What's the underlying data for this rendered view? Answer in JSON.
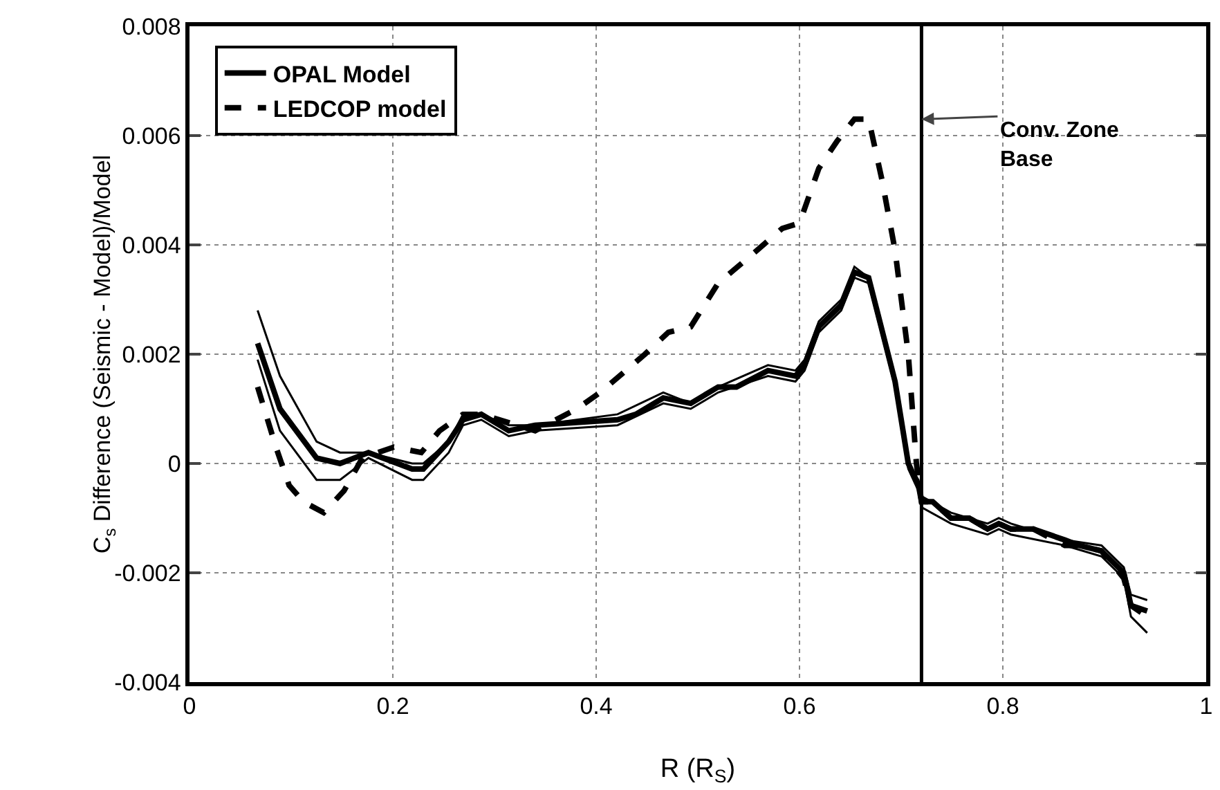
{
  "chart_data": {
    "type": "line",
    "xlabel": "R (R$_{S}$)",
    "ylabel": "C$_{s}$ Difference (Seismic - Model)/Model",
    "xlim": [
      0,
      1
    ],
    "xticks": [
      0,
      0.2,
      0.4,
      0.6,
      0.8,
      1
    ],
    "ylim": [
      -0.004,
      0.008
    ],
    "yticks": [
      -0.004,
      -0.002,
      0,
      0.002,
      0.004,
      0.006,
      0.008
    ],
    "grid": true,
    "legend": "top left",
    "marker": "none",
    "series": [
      {
        "name": "OPAL Model",
        "color": "#000000",
        "line_style": "solid",
        "x": [
          0.067,
          0.089,
          0.125,
          0.148,
          0.176,
          0.219,
          0.23,
          0.255,
          0.269,
          0.287,
          0.314,
          0.34,
          0.421,
          0.439,
          0.466,
          0.493,
          0.52,
          0.538,
          0.569,
          0.596,
          0.605,
          0.619,
          0.641,
          0.654,
          0.668,
          0.694,
          0.707,
          0.717,
          0.72,
          0.731,
          0.749,
          0.767,
          0.785,
          0.796,
          0.808,
          0.83,
          0.861,
          0.875,
          0.897,
          0.919,
          0.926,
          0.942
        ],
        "values": [
          0.0022,
          0.001,
          0.0001,
          0.0,
          0.0002,
          -0.0001,
          -0.0001,
          0.0004,
          0.0008,
          0.0009,
          0.0006,
          0.0007,
          0.0008,
          0.0009,
          0.0012,
          0.0011,
          0.0014,
          0.0014,
          0.0017,
          0.0016,
          0.0018,
          0.0025,
          0.0029,
          0.0035,
          0.0034,
          0.0015,
          0.0,
          -0.0004,
          -0.0007,
          -0.0007,
          -0.001,
          -0.001,
          -0.0012,
          -0.0011,
          -0.0012,
          -0.0012,
          -0.0014,
          -0.0015,
          -0.0016,
          -0.002,
          -0.0026,
          -0.0027
        ]
      },
      {
        "color": "#000000",
        "line_style": "solid",
        "x": [
          0.067,
          0.089,
          0.125,
          0.148,
          0.176,
          0.219,
          0.23,
          0.255,
          0.269,
          0.287,
          0.314,
          0.34,
          0.421,
          0.466,
          0.493,
          0.52,
          0.569,
          0.596,
          0.605,
          0.619,
          0.641,
          0.654,
          0.668,
          0.694,
          0.707,
          0.717,
          0.72,
          0.749,
          0.785,
          0.796,
          0.808,
          0.861,
          0.897,
          0.919,
          0.926,
          0.942
        ],
        "values": [
          0.0028,
          0.0016,
          0.0004,
          0.0002,
          0.0002,
          0.0,
          0.0,
          0.0004,
          0.0009,
          0.0009,
          0.0007,
          0.0007,
          0.0009,
          0.0013,
          0.0011,
          0.0014,
          0.0018,
          0.0017,
          0.0019,
          0.0026,
          0.003,
          0.0036,
          0.0034,
          0.0015,
          0.0,
          -0.0003,
          -0.0006,
          -0.0009,
          -0.0011,
          -0.001,
          -0.0011,
          -0.0014,
          -0.0015,
          -0.0019,
          -0.0024,
          -0.0025
        ]
      },
      {
        "color": "#000000",
        "line_style": "solid",
        "x": [
          0.067,
          0.089,
          0.125,
          0.148,
          0.176,
          0.219,
          0.23,
          0.255,
          0.269,
          0.287,
          0.314,
          0.34,
          0.421,
          0.466,
          0.493,
          0.52,
          0.569,
          0.596,
          0.605,
          0.619,
          0.641,
          0.654,
          0.668,
          0.694,
          0.707,
          0.717,
          0.72,
          0.749,
          0.785,
          0.796,
          0.808,
          0.861,
          0.897,
          0.919,
          0.926,
          0.942
        ],
        "values": [
          0.0019,
          0.0006,
          -0.0003,
          -0.0003,
          0.0001,
          -0.0003,
          -0.0003,
          0.0002,
          0.0007,
          0.0008,
          0.0005,
          0.0006,
          0.0007,
          0.0011,
          0.001,
          0.0013,
          0.0016,
          0.0015,
          0.0017,
          0.0024,
          0.0028,
          0.0034,
          0.0033,
          0.0014,
          -0.0001,
          -0.0005,
          -0.0008,
          -0.0011,
          -0.0013,
          -0.0012,
          -0.0013,
          -0.0015,
          -0.0017,
          -0.0021,
          -0.0028,
          -0.0031
        ]
      },
      {
        "name": "LEDCOP model",
        "color": "#000000",
        "line_style": "dashed",
        "x": [
          0.067,
          0.085,
          0.098,
          0.112,
          0.132,
          0.152,
          0.17,
          0.201,
          0.228,
          0.246,
          0.269,
          0.287,
          0.34,
          0.381,
          0.404,
          0.448,
          0.471,
          0.493,
          0.52,
          0.552,
          0.583,
          0.6,
          0.619,
          0.637,
          0.654,
          0.668,
          0.681,
          0.694,
          0.707,
          0.715,
          0.72,
          0.731,
          0.749,
          0.767,
          0.785,
          0.796,
          0.808,
          0.83,
          0.861,
          0.875,
          0.897,
          0.919,
          0.926,
          0.942
        ],
        "values": [
          0.0014,
          0.0003,
          -0.0004,
          -0.0007,
          -0.0009,
          -0.0005,
          0.0001,
          0.0003,
          0.0002,
          0.0006,
          0.0009,
          0.0009,
          0.0006,
          0.001,
          0.0013,
          0.002,
          0.0024,
          0.0025,
          0.0033,
          0.0038,
          0.0043,
          0.0044,
          0.0054,
          0.0059,
          0.0063,
          0.0063,
          0.0052,
          0.0039,
          0.002,
          0.0,
          -0.0007,
          -0.0007,
          -0.001,
          -0.001,
          -0.0012,
          -0.0011,
          -0.0012,
          -0.0012,
          -0.0015,
          -0.0015,
          -0.0016,
          -0.0021,
          -0.0026,
          -0.0028
        ]
      }
    ],
    "ref_lines": [
      {
        "axis": "x",
        "value": 0.72,
        "color": "#000000"
      }
    ],
    "annotations": [
      {
        "text": "Conv. Zone\nBase",
        "x": 0.72,
        "y": 0.0063
      }
    ]
  }
}
